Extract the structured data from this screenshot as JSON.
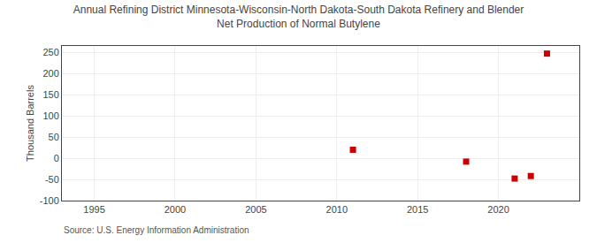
{
  "chart_data": {
    "type": "scatter",
    "title": "Annual Refining District Minnesota-Wisconsin-North Dakota-South Dakota Refinery and Blender\nNet Production of Normal Butylene",
    "ylabel": "Thousand Barrels",
    "annotations": [
      "Source: U.S. Energy Information Administration"
    ],
    "x": [
      2011,
      2018,
      2021,
      2022,
      2023
    ],
    "values": [
      20,
      -8,
      -48,
      -42,
      247
    ],
    "color": "#cc0000",
    "marker": "square",
    "xlim": [
      1993,
      2025
    ],
    "ylim": [
      -100,
      265
    ],
    "xticks": [
      1995,
      2000,
      2005,
      2010,
      2015,
      2020
    ],
    "yticks": [
      -100,
      -50,
      0,
      50,
      100,
      150,
      200,
      250
    ],
    "grid": true
  }
}
